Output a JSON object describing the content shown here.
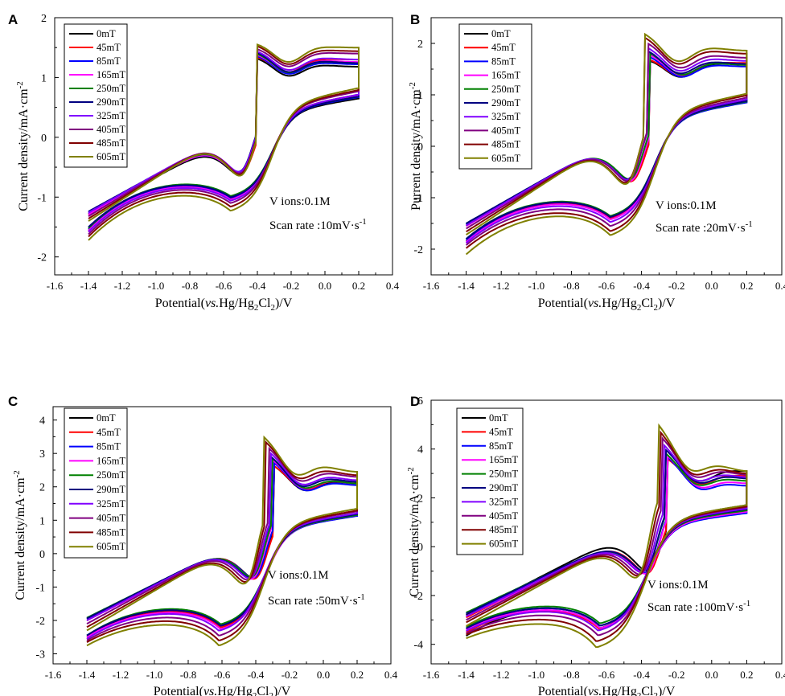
{
  "colors": {
    "0mT": "#000000",
    "45mT": "#ff0000",
    "85mT": "#0000ff",
    "165mT": "#ff00ff",
    "250mT": "#008000",
    "290mT": "#000080",
    "325mT": "#8000ff",
    "405mT": "#800080",
    "485mT": "#800000",
    "605mT": "#808000"
  },
  "chart_data": [
    {
      "type": "line",
      "panel": "A",
      "title": "",
      "xlabel": "Potential(vs.Hg/Hg2Cl2)/V",
      "ylabel": "Current density/mA·cm-2",
      "xlim": [
        -1.6,
        0.4
      ],
      "ylim": [
        -2.3,
        2
      ],
      "xticks": [
        "-1.6",
        "-1.4",
        "-1.2",
        "-1.0",
        "-0.8",
        "-0.6",
        "-0.4",
        "-0.2",
        "0.0",
        "0.2",
        "0.4"
      ],
      "yticks": [
        "-2",
        "-1",
        "0",
        "1",
        "2"
      ],
      "annotations": [
        "V ions:0.1M",
        "Scan rate :10mV·s-1"
      ],
      "legend": [
        "0mT",
        "45mT",
        "85mT",
        "165mT",
        "250mT",
        "290mT",
        "325mT",
        "405mT",
        "485mT",
        "605mT"
      ],
      "series": [
        {
          "name": "0mT",
          "start": -1.28,
          "end_ox": 1.18,
          "pa": 1.34,
          "pa_x": -0.4,
          "pc": -1.02,
          "pc_x": -0.55,
          "min_c": -1.56
        },
        {
          "name": "45mT",
          "start": -1.3,
          "end_ox": 1.3,
          "pa": 1.36,
          "pa_x": -0.4,
          "pc": -1.04,
          "pc_x": -0.55,
          "min_c": -1.58
        },
        {
          "name": "85mT",
          "start": -1.27,
          "end_ox": 1.22,
          "pa": 1.38,
          "pa_x": -0.4,
          "pc": -1.03,
          "pc_x": -0.55,
          "min_c": -1.54
        },
        {
          "name": "165mT",
          "start": -1.29,
          "end_ox": 1.26,
          "pa": 1.4,
          "pa_x": -0.4,
          "pc": -1.06,
          "pc_x": -0.55,
          "min_c": -1.56
        },
        {
          "name": "250mT",
          "start": -1.25,
          "end_ox": 1.24,
          "pa": 1.42,
          "pa_x": -0.4,
          "pc": -1.0,
          "pc_x": -0.55,
          "min_c": -1.52
        },
        {
          "name": "290mT",
          "start": -1.24,
          "end_ox": 1.24,
          "pa": 1.44,
          "pa_x": -0.4,
          "pc": -1.02,
          "pc_x": -0.55,
          "min_c": -1.5
        },
        {
          "name": "325mT",
          "start": -1.26,
          "end_ox": 1.3,
          "pa": 1.46,
          "pa_x": -0.4,
          "pc": -1.08,
          "pc_x": -0.55,
          "min_c": -1.58
        },
        {
          "name": "405mT",
          "start": -1.32,
          "end_ox": 1.4,
          "pa": 1.5,
          "pa_x": -0.4,
          "pc": -1.12,
          "pc_x": -0.55,
          "min_c": -1.62
        },
        {
          "name": "485mT",
          "start": -1.36,
          "end_ox": 1.44,
          "pa": 1.55,
          "pa_x": -0.4,
          "pc": -1.18,
          "pc_x": -0.55,
          "min_c": -1.66
        },
        {
          "name": "605mT",
          "start": -1.4,
          "end_ox": 1.5,
          "pa": 1.58,
          "pa_x": -0.4,
          "pc": -1.25,
          "pc_x": -0.55,
          "min_c": -1.72
        }
      ]
    },
    {
      "type": "line",
      "panel": "B",
      "title": "",
      "xlabel": "Potential(vs.Hg/Hg2Cl2)/V",
      "ylabel": "Purrent density/mA·cm-2",
      "xlim": [
        -1.6,
        0.4
      ],
      "ylim": [
        -2.5,
        2.5
      ],
      "xticks": [
        "-1.6",
        "-1.4",
        "-1.2",
        "-1.0",
        "-0.8",
        "-0.6",
        "-0.4",
        "-0.2",
        "0.0",
        "0.2",
        "0.4"
      ],
      "yticks": [
        "-2",
        "-1",
        "0",
        "1",
        "2"
      ],
      "annotations": [
        "V ions:0.1M",
        "Scan rate :20mV·s-1"
      ],
      "legend": [
        "0mT",
        "45mT",
        "85mT",
        "165mT",
        "250mT",
        "290mT",
        "325mT",
        "405mT",
        "485mT",
        "605mT"
      ],
      "series": [
        {
          "name": "0mT",
          "start": -1.52,
          "end_ox": 1.6,
          "pa": 1.7,
          "pa_x": -0.36,
          "pc": -1.4,
          "pc_x": -0.57,
          "min_c": -1.85
        },
        {
          "name": "45mT",
          "start": -1.55,
          "end_ox": 1.62,
          "pa": 1.72,
          "pa_x": -0.36,
          "pc": -1.42,
          "pc_x": -0.57,
          "min_c": -1.88
        },
        {
          "name": "85mT",
          "start": -1.52,
          "end_ox": 1.55,
          "pa": 1.78,
          "pa_x": -0.36,
          "pc": -1.4,
          "pc_x": -0.57,
          "min_c": -1.82
        },
        {
          "name": "165mT",
          "start": -1.55,
          "end_ox": 1.6,
          "pa": 1.82,
          "pa_x": -0.36,
          "pc": -1.45,
          "pc_x": -0.57,
          "min_c": -1.86
        },
        {
          "name": "250mT",
          "start": -1.5,
          "end_ox": 1.58,
          "pa": 1.86,
          "pa_x": -0.36,
          "pc": -1.38,
          "pc_x": -0.57,
          "min_c": -1.8
        },
        {
          "name": "290mT",
          "start": -1.5,
          "end_ox": 1.6,
          "pa": 1.9,
          "pa_x": -0.37,
          "pc": -1.4,
          "pc_x": -0.57,
          "min_c": -1.8
        },
        {
          "name": "325mT",
          "start": -1.54,
          "end_ox": 1.66,
          "pa": 1.96,
          "pa_x": -0.37,
          "pc": -1.5,
          "pc_x": -0.57,
          "min_c": -1.88
        },
        {
          "name": "405mT",
          "start": -1.6,
          "end_ox": 1.72,
          "pa": 2.05,
          "pa_x": -0.37,
          "pc": -1.58,
          "pc_x": -0.57,
          "min_c": -1.92
        },
        {
          "name": "485mT",
          "start": -1.66,
          "end_ox": 1.8,
          "pa": 2.15,
          "pa_x": -0.38,
          "pc": -1.68,
          "pc_x": -0.57,
          "min_c": -1.98
        },
        {
          "name": "605mT",
          "start": -1.72,
          "end_ox": 1.86,
          "pa": 2.22,
          "pa_x": -0.38,
          "pc": -1.76,
          "pc_x": -0.57,
          "min_c": -2.1
        }
      ]
    },
    {
      "type": "line",
      "panel": "C",
      "title": "",
      "xlabel": "Potential(vs.Hg/Hg2Cl2)/V",
      "ylabel": "Current density/mA·cm-2",
      "xlim": [
        -1.6,
        0.4
      ],
      "ylim": [
        -3.3,
        4.4
      ],
      "xticks": [
        "-1.6",
        "-1.4",
        "-1.2",
        "-1.0",
        "-0.8",
        "-0.6",
        "-0.4",
        "-0.2",
        "0.0",
        "0.2",
        "0.4"
      ],
      "yticks": [
        "-3",
        "-2",
        "-1",
        "0",
        "1",
        "2",
        "3",
        "4"
      ],
      "annotations": [
        "V ions:0.1M",
        "Scan rate :50mV·s-1"
      ],
      "legend": [
        "0mT",
        "45mT",
        "85mT",
        "165mT",
        "250mT",
        "290mT",
        "325mT",
        "405mT",
        "485mT",
        "605mT"
      ],
      "series": [
        {
          "name": "0mT",
          "start": -1.95,
          "end_ox": 2.1,
          "pa": 2.7,
          "pa_x": -0.3,
          "pc": -2.2,
          "pc_x": -0.6,
          "min_c": -2.5
        },
        {
          "name": "45mT",
          "start": -2.0,
          "end_ox": 2.15,
          "pa": 2.7,
          "pa_x": -0.3,
          "pc": -2.25,
          "pc_x": -0.6,
          "min_c": -2.55
        },
        {
          "name": "85mT",
          "start": -1.95,
          "end_ox": 2.05,
          "pa": 2.8,
          "pa_x": -0.3,
          "pc": -2.2,
          "pc_x": -0.6,
          "min_c": -2.45
        },
        {
          "name": "165mT",
          "start": -2.0,
          "end_ox": 2.1,
          "pa": 2.9,
          "pa_x": -0.31,
          "pc": -2.3,
          "pc_x": -0.6,
          "min_c": -2.5
        },
        {
          "name": "250mT",
          "start": -1.92,
          "end_ox": 2.1,
          "pa": 2.95,
          "pa_x": -0.31,
          "pc": -2.15,
          "pc_x": -0.6,
          "min_c": -2.45
        },
        {
          "name": "290mT",
          "start": -1.94,
          "end_ox": 2.15,
          "pa": 3.0,
          "pa_x": -0.32,
          "pc": -2.2,
          "pc_x": -0.6,
          "min_c": -2.45
        },
        {
          "name": "325mT",
          "start": -2.0,
          "end_ox": 2.2,
          "pa": 3.1,
          "pa_x": -0.32,
          "pc": -2.35,
          "pc_x": -0.61,
          "min_c": -2.55
        },
        {
          "name": "405mT",
          "start": -2.1,
          "end_ox": 2.3,
          "pa": 3.25,
          "pa_x": -0.33,
          "pc": -2.5,
          "pc_x": -0.61,
          "min_c": -2.6
        },
        {
          "name": "485mT",
          "start": -2.2,
          "end_ox": 2.35,
          "pa": 3.4,
          "pa_x": -0.34,
          "pc": -2.65,
          "pc_x": -0.61,
          "min_c": -2.65
        },
        {
          "name": "605mT",
          "start": -2.3,
          "end_ox": 2.45,
          "pa": 3.55,
          "pa_x": -0.35,
          "pc": -2.8,
          "pc_x": -0.61,
          "min_c": -2.75
        }
      ]
    },
    {
      "type": "line",
      "panel": "D",
      "title": "",
      "xlabel": "Potential(vs.Hg/Hg2Cl2)/V",
      "ylabel": "Current density/mA·cm-2",
      "xlim": [
        -1.6,
        0.4
      ],
      "ylim": [
        -4.8,
        6
      ],
      "xticks": [
        "-1.6",
        "-1.4",
        "-1.2",
        "-1.0",
        "-0.8",
        "-0.6",
        "-0.4",
        "-0.2",
        "0.0",
        "0.2",
        "0.4"
      ],
      "yticks": [
        "-4",
        "-2",
        "0",
        "2",
        "4",
        "6"
      ],
      "annotations": [
        "V ions:0.1M",
        "Scan rate :100mV·s-1"
      ],
      "legend": [
        "0mT",
        "45mT",
        "85mT",
        "165mT",
        "250mT",
        "290mT",
        "325mT",
        "405mT",
        "485mT",
        "605mT"
      ],
      "series": [
        {
          "name": "0mT",
          "start": -2.8,
          "end_ox": 3.1,
          "pa": 3.7,
          "pa_x": -0.26,
          "pc": -3.4,
          "pc_x": -0.63,
          "min_c": -3.65
        },
        {
          "name": "45mT",
          "start": -2.9,
          "end_ox": 2.9,
          "pa": 3.7,
          "pa_x": -0.26,
          "pc": -3.45,
          "pc_x": -0.63,
          "min_c": -3.5
        },
        {
          "name": "85mT",
          "start": -2.75,
          "end_ox": 2.5,
          "pa": 3.8,
          "pa_x": -0.26,
          "pc": -3.3,
          "pc_x": -0.63,
          "min_c": -3.35
        },
        {
          "name": "165mT",
          "start": -2.85,
          "end_ox": 2.6,
          "pa": 3.85,
          "pa_x": -0.26,
          "pc": -3.4,
          "pc_x": -0.63,
          "min_c": -3.4
        },
        {
          "name": "250mT",
          "start": -2.7,
          "end_ox": 2.7,
          "pa": 3.95,
          "pa_x": -0.27,
          "pc": -3.2,
          "pc_x": -0.63,
          "min_c": -3.3
        },
        {
          "name": "290mT",
          "start": -2.75,
          "end_ox": 2.8,
          "pa": 4.1,
          "pa_x": -0.27,
          "pc": -3.3,
          "pc_x": -0.63,
          "min_c": -3.35
        },
        {
          "name": "325mT",
          "start": -2.85,
          "end_ox": 2.85,
          "pa": 4.3,
          "pa_x": -0.28,
          "pc": -3.5,
          "pc_x": -0.64,
          "min_c": -3.45
        },
        {
          "name": "405mT",
          "start": -3.0,
          "end_ox": 2.95,
          "pa": 4.6,
          "pa_x": -0.29,
          "pc": -3.7,
          "pc_x": -0.64,
          "min_c": -3.55
        },
        {
          "name": "485mT",
          "start": -3.1,
          "end_ox": 3.0,
          "pa": 4.85,
          "pa_x": -0.3,
          "pc": -3.95,
          "pc_x": -0.65,
          "min_c": -3.6
        },
        {
          "name": "605mT",
          "start": -3.25,
          "end_ox": 3.1,
          "pa": 5.15,
          "pa_x": -0.31,
          "pc": -4.2,
          "pc_x": -0.65,
          "min_c": -3.75
        }
      ]
    }
  ]
}
